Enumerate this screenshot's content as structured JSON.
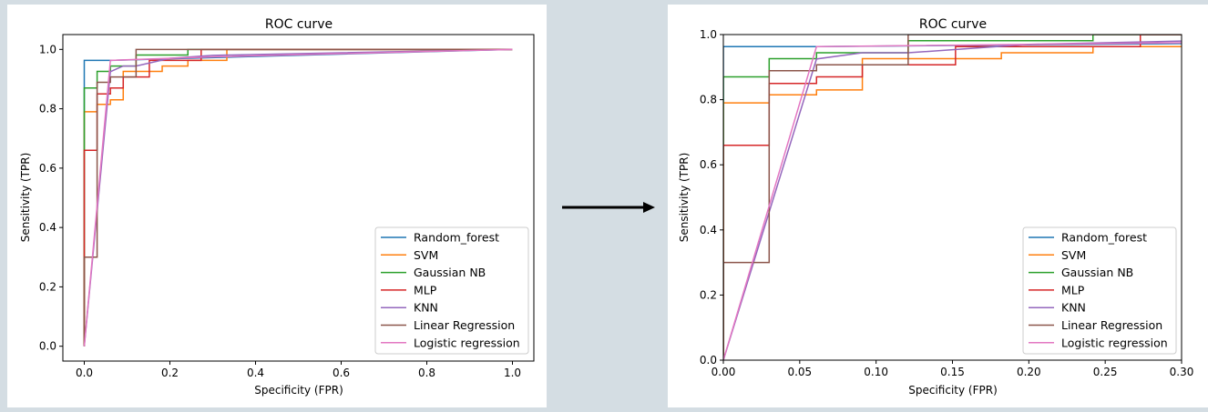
{
  "colors": {
    "background": "#d4dde3",
    "panel": "#ffffff",
    "Random_forest": "#1f77b4",
    "SVM": "#ff7f0e",
    "Gaussian NB": "#2ca02c",
    "MLP": "#d62728",
    "KNN": "#9467bd",
    "Linear Regression": "#8c564b",
    "Logistic regression": "#e377c2",
    "arrow": "#000000"
  },
  "chart_data": [
    {
      "id": "full",
      "type": "line",
      "title": "ROC curve",
      "xlabel": "Specificity (FPR)",
      "ylabel": "Sensitivity (TPR)",
      "xlim": [
        -0.05,
        1.05
      ],
      "ylim": [
        -0.05,
        1.05
      ],
      "xticks": [
        0.0,
        0.2,
        0.4,
        0.6,
        0.8,
        1.0
      ],
      "yticks": [
        0.0,
        0.2,
        0.4,
        0.6,
        0.8,
        1.0
      ],
      "xtick_labels": [
        "0.0",
        "0.2",
        "0.4",
        "0.6",
        "0.8",
        "1.0"
      ],
      "ytick_labels": [
        "0.0",
        "0.2",
        "0.4",
        "0.6",
        "0.8",
        "1.0"
      ],
      "legend_position": "bottom-right",
      "legend": [
        "Random_forest",
        "SVM",
        "Gaussian NB",
        "MLP",
        "KNN",
        "Linear Regression",
        "Logistic regression"
      ]
    },
    {
      "id": "zoom",
      "type": "line",
      "title": "ROC curve",
      "xlabel": "Specificity (FPR)",
      "ylabel": "Sensitivity (TPR)",
      "xlim": [
        0.0,
        0.3
      ],
      "ylim": [
        0.0,
        1.0
      ],
      "xticks": [
        0.0,
        0.05,
        0.1,
        0.15,
        0.2,
        0.25,
        0.3
      ],
      "yticks": [
        0.0,
        0.2,
        0.4,
        0.6,
        0.8,
        1.0
      ],
      "xtick_labels": [
        "0.00",
        "0.05",
        "0.10",
        "0.15",
        "0.20",
        "0.25",
        "0.30"
      ],
      "ytick_labels": [
        "0.0",
        "0.2",
        "0.4",
        "0.6",
        "0.8",
        "1.0"
      ],
      "legend_position": "bottom-right",
      "legend": [
        "Random_forest",
        "SVM",
        "Gaussian NB",
        "MLP",
        "KNN",
        "Linear Regression",
        "Logistic regression"
      ]
    }
  ],
  "series": [
    {
      "name": "Random_forest",
      "x": [
        0,
        0,
        0,
        0.061,
        0.061,
        1.0
      ],
      "y": [
        0,
        0.87,
        0.963,
        0.963,
        0.963,
        1.0
      ]
    },
    {
      "name": "SVM",
      "x": [
        0,
        0,
        0.03,
        0.03,
        0.061,
        0.061,
        0.091,
        0.091,
        0.182,
        0.182,
        0.242,
        0.242,
        0.333,
        0.333,
        1.0
      ],
      "y": [
        0,
        0.79,
        0.79,
        0.815,
        0.815,
        0.83,
        0.83,
        0.926,
        0.926,
        0.944,
        0.944,
        0.963,
        0.963,
        1.0,
        1.0
      ]
    },
    {
      "name": "Gaussian NB",
      "x": [
        0,
        0,
        0.03,
        0.03,
        0.061,
        0.061,
        0.121,
        0.121,
        0.242,
        0.242,
        1.0
      ],
      "y": [
        0,
        0.87,
        0.87,
        0.926,
        0.926,
        0.944,
        0.944,
        0.981,
        0.981,
        1.0,
        1.0
      ]
    },
    {
      "name": "MLP",
      "x": [
        0,
        0,
        0.03,
        0.03,
        0.061,
        0.061,
        0.091,
        0.091,
        0.152,
        0.152,
        0.273,
        0.273,
        1.0
      ],
      "y": [
        0,
        0.66,
        0.66,
        0.85,
        0.85,
        0.87,
        0.87,
        0.907,
        0.907,
        0.963,
        0.963,
        1.0,
        1.0
      ]
    },
    {
      "name": "KNN",
      "x": [
        0,
        0.061,
        0.091,
        0.121,
        0.2,
        0.3,
        1.0
      ],
      "y": [
        0,
        0.925,
        0.944,
        0.944,
        0.97,
        0.98,
        1.0
      ]
    },
    {
      "name": "Linear Regression",
      "x": [
        0,
        0,
        0.03,
        0.03,
        0.061,
        0.061,
        0.121,
        0.121,
        1.0
      ],
      "y": [
        0,
        0.3,
        0.3,
        0.889,
        0.889,
        0.907,
        0.907,
        1.0,
        1.0
      ]
    },
    {
      "name": "Logistic regression",
      "x": [
        0,
        0.061,
        0.3,
        1.0
      ],
      "y": [
        0,
        0.963,
        0.975,
        1.0
      ]
    }
  ]
}
